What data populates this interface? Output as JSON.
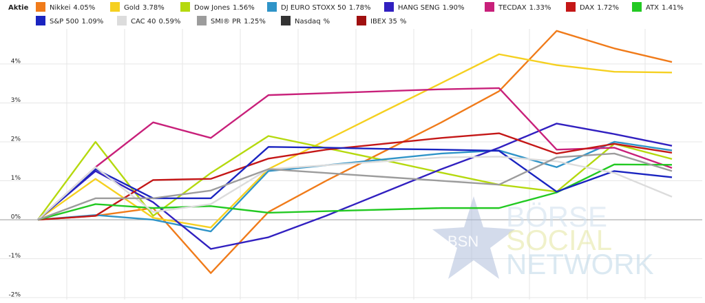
{
  "chart_data": {
    "type": "line",
    "legend_title": "Aktie",
    "categories": [
      null,
      null,
      null,
      null,
      null,
      null,
      null,
      null,
      null,
      null,
      null,
      null
    ],
    "ylim": [
      -2.05,
      4.9
    ],
    "yticks": [
      {
        "value": -2,
        "label": "-2%"
      },
      {
        "value": -1,
        "label": "-1%"
      },
      {
        "value": 0,
        "label": "0%"
      },
      {
        "value": 1,
        "label": "1%"
      },
      {
        "value": 2,
        "label": "2%"
      },
      {
        "value": 3,
        "label": "3%"
      },
      {
        "value": 4,
        "label": "4%"
      }
    ],
    "grid": true,
    "watermark": [
      "BSN",
      "BÖRSE",
      "SOCIAL",
      "NETWORK"
    ],
    "series": [
      {
        "name": "Nikkei",
        "value_label": "4.05%",
        "color": "#f07b1a",
        "values": [
          0,
          0.1,
          0.3,
          -1.37,
          0.2,
          1.0,
          1.75,
          2.5,
          3.3,
          4.85,
          4.4,
          4.05
        ]
      },
      {
        "name": "Gold",
        "value_label": "3.78%",
        "color": "#f5d020",
        "values": [
          0,
          1.05,
          0.05,
          -0.2,
          1.3,
          2.04,
          2.78,
          3.51,
          4.25,
          3.97,
          3.8,
          3.78
        ]
      },
      {
        "name": "Dow Jones",
        "value_label": "1.56%",
        "color": "#b5d90e",
        "values": [
          0,
          2.0,
          0.1,
          1.2,
          2.15,
          1.84,
          1.53,
          1.21,
          0.9,
          0.72,
          1.95,
          1.56
        ]
      },
      {
        "name": "DJ EURO STOXX 50",
        "value_label": "1.78%",
        "color": "#2f94c8",
        "values": [
          0,
          0.12,
          0,
          -0.3,
          1.25,
          1.4,
          1.55,
          1.7,
          1.78,
          1.35,
          2.0,
          1.78
        ]
      },
      {
        "name": "HANG SENG",
        "value_label": "1.90%",
        "color": "#3120c0",
        "values": [
          0,
          1.25,
          0.45,
          -0.75,
          -0.45,
          0.1,
          0.7,
          1.3,
          1.85,
          2.47,
          2.2,
          1.9
        ]
      },
      {
        "name": "TECDAX",
        "value_label": "1.33%",
        "color": "#c8207a",
        "values": [
          0,
          1.35,
          2.5,
          2.1,
          3.2,
          3.25,
          3.3,
          3.35,
          3.38,
          1.8,
          1.85,
          1.33
        ]
      },
      {
        "name": "DAX",
        "value_label": "1.72%",
        "color": "#c41717",
        "values": [
          0,
          0.1,
          1.02,
          1.05,
          1.57,
          1.8,
          1.95,
          2.1,
          2.22,
          1.7,
          1.95,
          1.72
        ]
      },
      {
        "name": "ATX",
        "value_label": "1.41%",
        "color": "#22c922",
        "values": [
          0,
          0.4,
          0.3,
          0.35,
          0.18,
          0.22,
          0.26,
          0.3,
          0.3,
          0.7,
          1.42,
          1.41
        ]
      },
      {
        "name": "S&P 500",
        "value_label": "1.09%",
        "color": "#1a24c0",
        "values": [
          0,
          1.3,
          0.55,
          0.55,
          1.87,
          1.85,
          1.82,
          1.8,
          1.77,
          0.72,
          1.25,
          1.09
        ]
      },
      {
        "name": "CAC 40",
        "value_label": "0.59%",
        "color": "#dcdcdc",
        "values": [
          0,
          1.35,
          0.2,
          0.4,
          1.3,
          1.4,
          1.5,
          1.6,
          1.62,
          1.5,
          1.2,
          0.59
        ]
      },
      {
        "name": "SMI® PR",
        "value_label": "1.25%",
        "color": "#9c9c9c",
        "values": [
          0,
          0.55,
          0.55,
          0.75,
          1.3,
          1.2,
          1.1,
          1.0,
          0.9,
          1.6,
          1.7,
          1.25
        ]
      },
      {
        "name": "Nasdaq",
        "value_label": "%",
        "color": "#333333",
        "values": [
          null,
          null,
          null,
          null,
          null,
          null,
          null,
          null,
          null,
          null,
          null,
          null
        ]
      },
      {
        "name": "IBEX 35",
        "value_label": "%",
        "color": "#a01010",
        "values": [
          null,
          null,
          null,
          null,
          null,
          null,
          null,
          null,
          null,
          null,
          null,
          null
        ]
      }
    ]
  }
}
